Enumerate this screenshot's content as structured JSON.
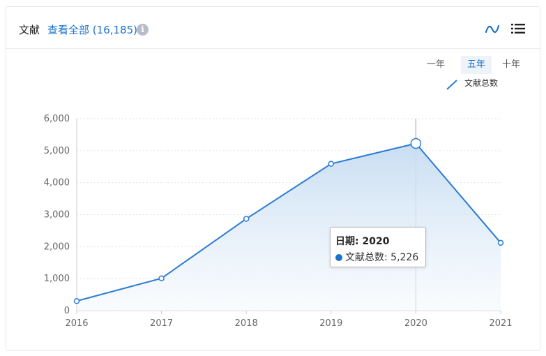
{
  "header": {
    "title": "文献",
    "view_all_label": "查看全部",
    "view_all_count": "(16,185)",
    "info_icon": "info-icon",
    "trend_icon": "trend-line-icon",
    "list_icon": "list-icon"
  },
  "range_tabs": [
    {
      "label": "一年",
      "active": false
    },
    {
      "label": "五年",
      "active": true
    },
    {
      "label": "十年",
      "active": false
    }
  ],
  "tooltip": {
    "title": "日期: 2020",
    "series_name": "文献总数",
    "value": "5,226"
  },
  "colors": {
    "accent": "#1a73c9",
    "line": "#2b7bd4",
    "area_top": "#c6dcf2",
    "area_bottom": "#f5f9fd"
  },
  "chart_data": {
    "type": "area",
    "x": [
      "2016",
      "2017",
      "2018",
      "2019",
      "2020",
      "2021"
    ],
    "series": [
      {
        "name": "文献总数",
        "values": [
          300,
          1010,
          2870,
          4590,
          5226,
          2120
        ]
      }
    ],
    "ylim": [
      0,
      6000
    ],
    "yticks": [
      0,
      1000,
      2000,
      3000,
      4000,
      5000,
      6000
    ],
    "ytick_labels": [
      "0",
      "1,000",
      "2,000",
      "3,000",
      "4,000",
      "5,000",
      "6,000"
    ],
    "legend": [
      "文献总数"
    ],
    "legend_position": "top-right",
    "grid": true,
    "highlighted_x": "2020"
  }
}
